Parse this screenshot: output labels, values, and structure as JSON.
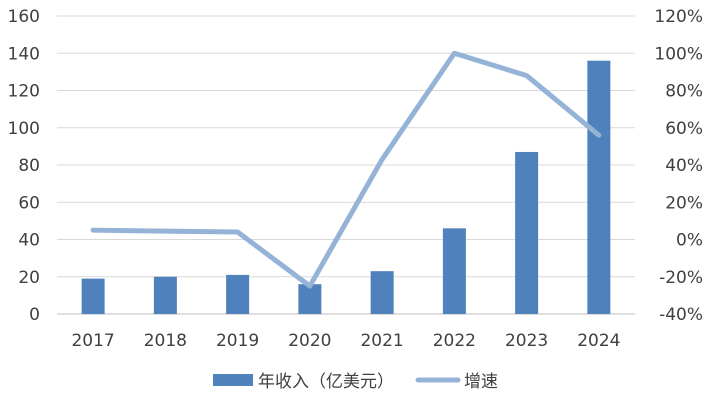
{
  "chart_data": {
    "type": "bar",
    "categories": [
      "2017",
      "2018",
      "2019",
      "2020",
      "2021",
      "2022",
      "2023",
      "2024"
    ],
    "series": [
      {
        "name": "年收入（亿美元）",
        "type": "bar",
        "axis": "left",
        "color": "#4f81bd",
        "values": [
          19,
          20,
          21,
          16,
          23,
          46,
          87,
          136
        ]
      },
      {
        "name": "增速",
        "type": "line",
        "axis": "right",
        "color": "#95b3d7",
        "values": [
          5,
          null,
          4,
          -25,
          43,
          100,
          88,
          56
        ]
      }
    ],
    "y_left": {
      "min": 0,
      "max": 160,
      "step": 20,
      "ticks": [
        "0",
        "20",
        "40",
        "60",
        "80",
        "100",
        "120",
        "140",
        "160"
      ]
    },
    "y_right": {
      "min": -40,
      "max": 120,
      "step": 20,
      "ticks": [
        "-40%",
        "-20%",
        "0%",
        "20%",
        "40%",
        "60%",
        "80%",
        "100%",
        "120%"
      ]
    },
    "grid": true,
    "legend_position": "bottom"
  }
}
